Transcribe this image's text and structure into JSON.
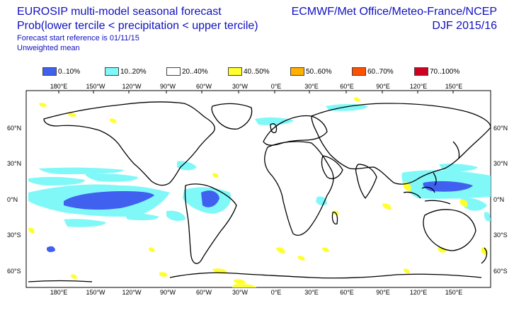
{
  "header": {
    "title_line1": "EUROSIP multi-model seasonal forecast",
    "title_line2": "Prob(lower tercile < precipitation < upper tercile)",
    "forecast_start": "Forecast start reference is 01/11/15",
    "weighting": "Unweighted mean",
    "organizations": "ECMWF/Met Office/Meteo-France/NCEP",
    "season": "DJF 2015/16"
  },
  "legend": [
    {
      "label": "0..10%",
      "color": "#4060f0"
    },
    {
      "label": "10..20%",
      "color": "#80f8f8"
    },
    {
      "label": "20..40%",
      "color": "#ffffff"
    },
    {
      "label": "40..50%",
      "color": "#ffff30"
    },
    {
      "label": "50..60%",
      "color": "#ffb000"
    },
    {
      "label": "60..70%",
      "color": "#ff5000"
    },
    {
      "label": "70..100%",
      "color": "#d00020"
    }
  ],
  "axes": {
    "lon_labels": [
      "180°E",
      "150°W",
      "120°W",
      "90°W",
      "60°W",
      "30°W",
      "0°E",
      "30°E",
      "60°E",
      "90°E",
      "120°E",
      "150°E"
    ],
    "lat_labels": [
      "60°N",
      "30°N",
      "0°N",
      "30°S",
      "60°S"
    ]
  }
}
